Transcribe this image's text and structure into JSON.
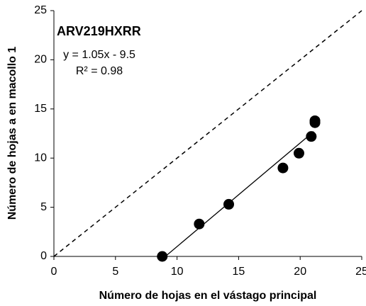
{
  "chart_data": {
    "type": "scatter",
    "title": "ARV219HXRR",
    "annotations": [
      "y = 1.05x - 9.5",
      "R² = 0.98"
    ],
    "x_label": "Número de hojas en el vástago principal",
    "y_label": "Número de hojas a en macollo 1",
    "x": [
      8.8,
      11.8,
      14.2,
      18.6,
      19.9,
      20.9,
      21.2,
      21.2
    ],
    "values": [
      0,
      3.3,
      5.3,
      9.0,
      10.5,
      12.2,
      13.6,
      13.8
    ],
    "color": "#000000",
    "trendline": {
      "x": [
        9.05,
        21.1
      ],
      "y": [
        0,
        12.7
      ]
    },
    "reference_line": {
      "x": [
        0,
        25
      ],
      "y": [
        0,
        25
      ]
    },
    "xlim": [
      0,
      25
    ],
    "xticks": [
      0,
      5,
      10,
      15,
      20,
      25
    ],
    "ylim": [
      0,
      25
    ],
    "yticks": [
      0,
      5,
      10,
      15,
      20,
      25
    ]
  }
}
